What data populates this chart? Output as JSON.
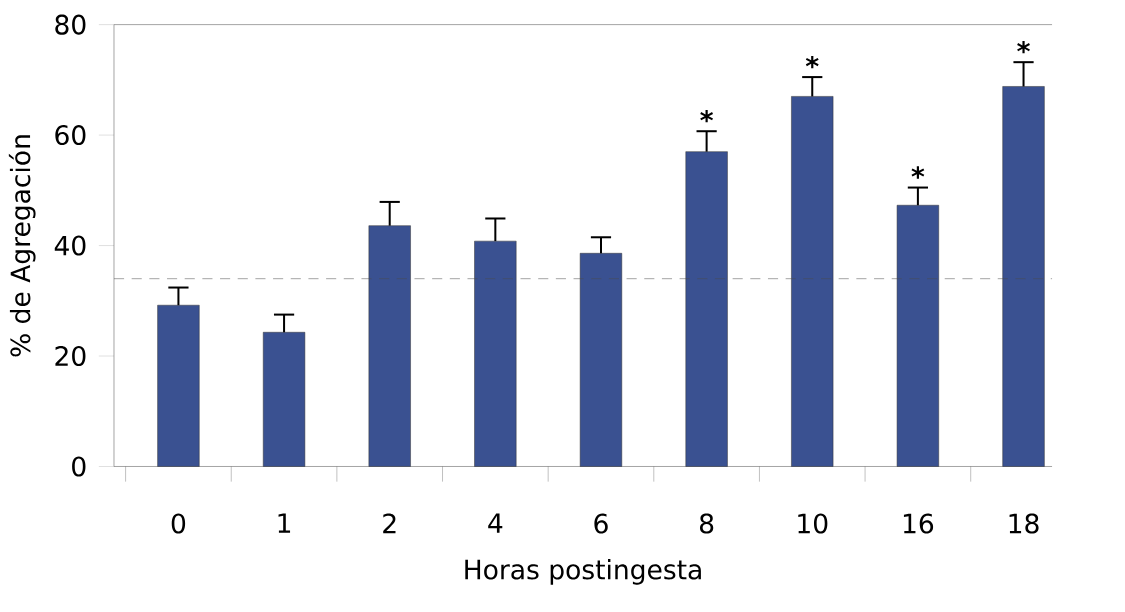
{
  "chart_data": {
    "type": "bar",
    "xlabel": "Horas postingesta",
    "ylabel": "% de Agregación",
    "categories": [
      "0",
      "1",
      "2",
      "4",
      "6",
      "8",
      "10",
      "16",
      "18"
    ],
    "values": [
      29.2,
      24.3,
      43.6,
      40.8,
      38.6,
      57.0,
      67.0,
      47.3,
      68.8
    ],
    "errors": [
      3.2,
      3.2,
      4.3,
      4.1,
      2.9,
      3.7,
      3.5,
      3.2,
      4.4
    ],
    "color": "#3a5191",
    "ylim": [
      0,
      80
    ],
    "yticks": [
      0,
      20,
      40,
      60,
      80
    ],
    "ref_lines": [
      {
        "axis": "y",
        "value": 34,
        "line_style": "dashed"
      }
    ],
    "annotations": [
      {
        "text": "*",
        "x": "8",
        "y": 60.7
      },
      {
        "text": "*",
        "x": "10",
        "y": 70.5
      },
      {
        "text": "*",
        "x": "16",
        "y": 50.5
      },
      {
        "text": "*",
        "x": "18",
        "y": 73.2
      }
    ]
  }
}
